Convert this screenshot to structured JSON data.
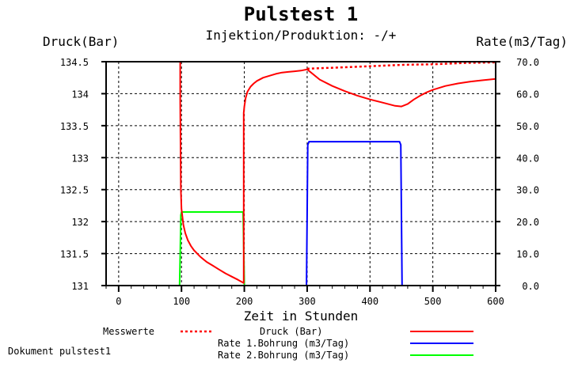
{
  "chart_data": {
    "type": "line",
    "title": "Pulstest 1",
    "subtitle": "Injektion/Produktion: -/+",
    "xlabel": "Zeit in Stunden",
    "ylabel_left": "Druck(Bar)",
    "ylabel_right": "Rate(m3/Tag)",
    "xlim": [
      -20,
      600
    ],
    "ylim_left": [
      131,
      134.5
    ],
    "ylim_right": [
      0,
      70
    ],
    "grid": true,
    "x_ticks": [
      "0",
      "100",
      "200",
      "300",
      "400",
      "500",
      "600"
    ],
    "x_tick_values": [
      0,
      100,
      200,
      300,
      400,
      500,
      600
    ],
    "y_ticks_left": [
      "131",
      "131.5",
      "132",
      "132.5",
      "133",
      "133.5",
      "134",
      "134.5"
    ],
    "y_tick_values_left": [
      131,
      131.5,
      132,
      132.5,
      133,
      133.5,
      134,
      134.5
    ],
    "y_ticks_right": [
      "0.0",
      "10.0",
      "20.0",
      "30.0",
      "40.0",
      "50.0",
      "60.0",
      "70.0"
    ],
    "y_tick_values_right": [
      0,
      10,
      20,
      30,
      40,
      50,
      60,
      70
    ],
    "series": [
      {
        "name": "Messwerte",
        "axis": "left",
        "color": "#ff0000",
        "style": "dotted",
        "x": [
          300,
          350,
          400,
          450,
          500,
          550,
          600
        ],
        "y": [
          134.39,
          134.41,
          134.43,
          134.45,
          134.46,
          134.48,
          134.49
        ]
      },
      {
        "name": "Druck (Bar)",
        "axis": "left",
        "color": "#ff0000",
        "style": "solid",
        "x": [
          -20,
          98,
          98,
          99,
          100,
          103,
          106,
          110,
          115,
          120,
          130,
          140,
          150,
          160,
          170,
          180,
          190,
          199,
          199,
          200,
          202,
          205,
          210,
          215,
          220,
          230,
          240,
          250,
          260,
          270,
          280,
          290,
          300,
          320,
          340,
          360,
          380,
          400,
          420,
          440,
          450,
          460,
          470,
          480,
          490,
          500,
          520,
          540,
          560,
          580,
          600
        ],
        "y": [
          134.5,
          134.5,
          133.9,
          132.5,
          132.2,
          131.95,
          131.82,
          131.71,
          131.62,
          131.55,
          131.45,
          131.37,
          131.31,
          131.25,
          131.19,
          131.14,
          131.09,
          131.04,
          133.7,
          133.8,
          133.93,
          134.03,
          134.11,
          134.16,
          134.2,
          134.25,
          134.28,
          134.31,
          134.33,
          134.34,
          134.35,
          134.36,
          134.38,
          134.22,
          134.12,
          134.04,
          133.97,
          133.91,
          133.86,
          133.81,
          133.8,
          133.84,
          133.91,
          133.97,
          134.02,
          134.06,
          134.12,
          134.16,
          134.19,
          134.21,
          134.23
        ]
      },
      {
        "name": "Rate 1.Bohrung (m3/Tag)",
        "axis": "right",
        "color": "#0000ff",
        "style": "solid",
        "x": [
          -20,
          98,
          99,
          198,
          199,
          299,
          300,
          301,
          303,
          447,
          449,
          450,
          451,
          600
        ],
        "y": [
          0,
          0,
          0,
          0,
          0,
          0,
          22,
          44,
          45,
          45,
          44,
          22,
          0,
          0
        ]
      },
      {
        "name": "Rate 2.Bohrung (m3/Tag)",
        "axis": "right",
        "color": "#00ff00",
        "style": "solid",
        "x": [
          -20,
          97,
          98,
          99,
          100,
          198,
          199,
          200,
          600
        ],
        "y": [
          0,
          0,
          10,
          22,
          23,
          23,
          12,
          0,
          0
        ]
      }
    ]
  },
  "legend": {
    "measured_label": "Messwerte",
    "entries": [
      "Druck (Bar)",
      "Rate 1.Bohrung (m3/Tag)",
      "Rate 2.Bohrung (m3/Tag)"
    ]
  },
  "footer": {
    "document_label": "Dokument pulstest1"
  }
}
